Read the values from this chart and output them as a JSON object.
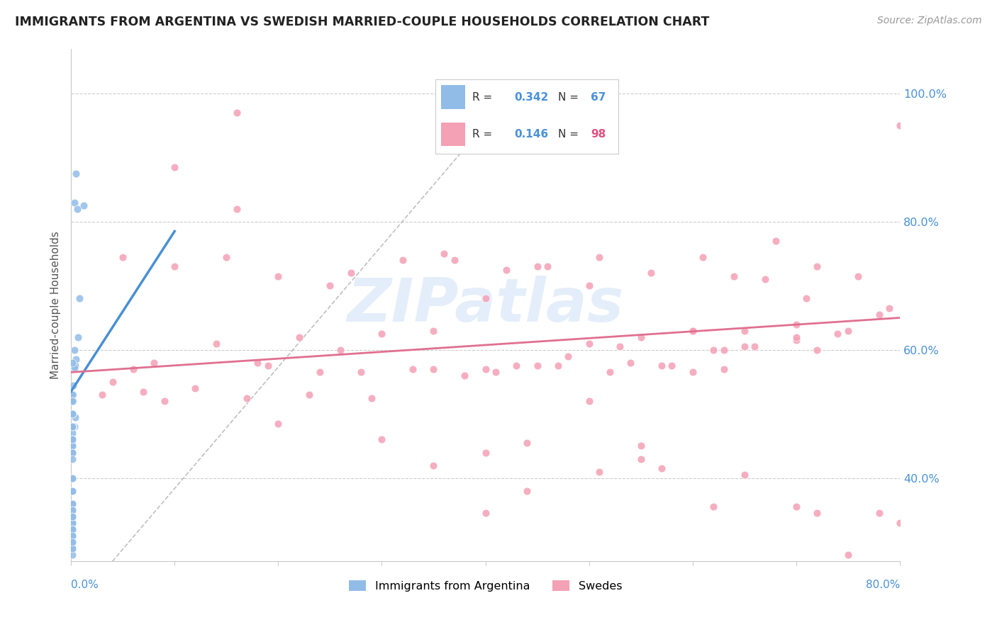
{
  "title": "IMMIGRANTS FROM ARGENTINA VS SWEDISH MARRIED-COUPLE HOUSEHOLDS CORRELATION CHART",
  "source": "Source: ZipAtlas.com",
  "ylabel": "Married-couple Households",
  "y_ticks": [
    0.4,
    0.6,
    0.8,
    1.0
  ],
  "y_tick_labels": [
    "40.0%",
    "60.0%",
    "80.0%",
    "100.0%"
  ],
  "xlim": [
    0.0,
    0.8
  ],
  "ylim": [
    0.27,
    1.07
  ],
  "color_blue": "#92bce8",
  "color_pink": "#f4a0b5",
  "color_blue_line": "#4a8fd4",
  "color_pink_line": "#e07090",
  "color_blue_text": "#4a90d9",
  "color_pink_text": "#e05080",
  "watermark": "ZIPatlas",
  "blue_x": [
    0.005,
    0.012,
    0.008,
    0.003,
    0.003,
    0.005,
    0.007,
    0.004,
    0.003,
    0.002,
    0.006,
    0.004,
    0.002,
    0.003,
    0.001,
    0.002,
    0.002,
    0.001,
    0.001,
    0.001,
    0.001,
    0.001,
    0.002,
    0.001,
    0.001,
    0.001,
    0.001,
    0.001,
    0.001,
    0.001,
    0.001,
    0.001,
    0.001,
    0.001,
    0.001,
    0.001,
    0.001,
    0.001,
    0.001,
    0.001,
    0.001,
    0.001,
    0.001,
    0.001,
    0.001,
    0.001,
    0.001,
    0.001,
    0.001,
    0.001,
    0.001,
    0.001,
    0.001,
    0.001,
    0.001,
    0.001,
    0.001,
    0.001,
    0.001,
    0.001,
    0.001,
    0.001,
    0.001,
    0.001,
    0.001,
    0.001,
    0.001
  ],
  "blue_y": [
    0.875,
    0.825,
    0.68,
    0.6,
    0.83,
    0.585,
    0.62,
    0.575,
    0.572,
    0.545,
    0.82,
    0.495,
    0.52,
    0.48,
    0.46,
    0.52,
    0.53,
    0.58,
    0.52,
    0.46,
    0.48,
    0.5,
    0.48,
    0.48,
    0.47,
    0.46,
    0.48,
    0.45,
    0.5,
    0.48,
    0.48,
    0.46,
    0.45,
    0.44,
    0.46,
    0.46,
    0.44,
    0.44,
    0.43,
    0.38,
    0.4,
    0.4,
    0.38,
    0.36,
    0.34,
    0.33,
    0.32,
    0.31,
    0.3,
    0.36,
    0.35,
    0.35,
    0.33,
    0.34,
    0.32,
    0.32,
    0.32,
    0.31,
    0.34,
    0.29,
    0.28,
    0.29,
    0.3,
    0.53,
    0.52,
    0.52,
    0.5
  ],
  "pink_x": [
    0.04,
    0.16,
    0.06,
    0.08,
    0.14,
    0.18,
    0.22,
    0.26,
    0.3,
    0.35,
    0.4,
    0.45,
    0.5,
    0.55,
    0.6,
    0.65,
    0.7,
    0.75,
    0.78,
    0.03,
    0.07,
    0.12,
    0.19,
    0.24,
    0.28,
    0.33,
    0.38,
    0.43,
    0.48,
    0.53,
    0.57,
    0.62,
    0.66,
    0.7,
    0.74,
    0.79,
    0.05,
    0.1,
    0.15,
    0.2,
    0.25,
    0.32,
    0.37,
    0.42,
    0.46,
    0.51,
    0.56,
    0.61,
    0.64,
    0.68,
    0.72,
    0.76,
    0.8,
    0.09,
    0.17,
    0.23,
    0.29,
    0.35,
    0.41,
    0.47,
    0.52,
    0.58,
    0.63,
    0.67,
    0.71,
    0.44,
    0.6,
    0.5,
    0.35,
    0.55,
    0.65,
    0.7,
    0.44,
    0.72,
    0.57,
    0.51,
    0.62,
    0.4,
    0.3,
    0.2,
    0.1,
    0.4,
    0.5,
    0.6,
    0.7,
    0.27,
    0.36,
    0.45,
    0.54,
    0.63,
    0.72,
    0.78,
    0.16,
    0.55,
    0.4,
    0.65,
    0.75,
    0.8
  ],
  "pink_y": [
    0.55,
    0.97,
    0.57,
    0.58,
    0.61,
    0.58,
    0.62,
    0.6,
    0.625,
    0.63,
    0.57,
    0.575,
    0.61,
    0.62,
    0.63,
    0.605,
    0.64,
    0.63,
    0.655,
    0.53,
    0.535,
    0.54,
    0.575,
    0.565,
    0.565,
    0.57,
    0.56,
    0.575,
    0.59,
    0.605,
    0.575,
    0.6,
    0.605,
    0.615,
    0.625,
    0.665,
    0.745,
    0.73,
    0.745,
    0.715,
    0.7,
    0.74,
    0.74,
    0.725,
    0.73,
    0.745,
    0.72,
    0.745,
    0.715,
    0.77,
    0.73,
    0.715,
    0.95,
    0.52,
    0.525,
    0.53,
    0.525,
    0.57,
    0.565,
    0.575,
    0.565,
    0.575,
    0.6,
    0.71,
    0.68,
    0.455,
    0.565,
    0.52,
    0.42,
    0.45,
    0.405,
    0.355,
    0.38,
    0.345,
    0.415,
    0.41,
    0.355,
    0.44,
    0.46,
    0.485,
    0.885,
    0.68,
    0.7,
    0.63,
    0.62,
    0.72,
    0.75,
    0.73,
    0.58,
    0.57,
    0.6,
    0.345,
    0.82,
    0.43,
    0.345,
    0.63,
    0.28,
    0.33
  ]
}
